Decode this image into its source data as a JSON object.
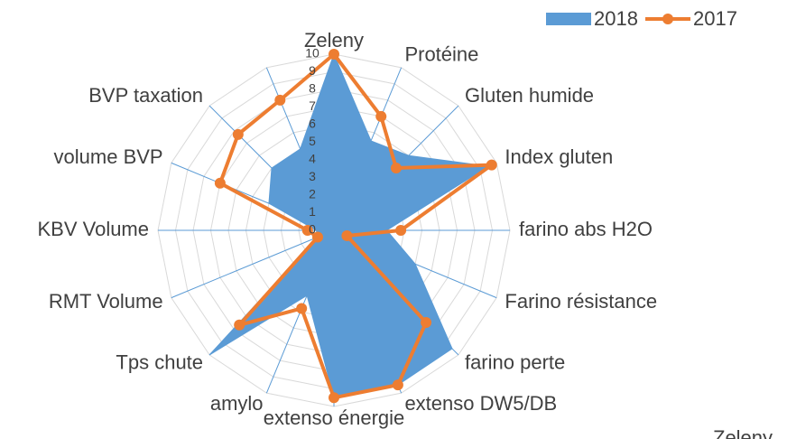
{
  "chart_data": {
    "type": "radar",
    "categories": [
      "Zeleny",
      "Protéine",
      "Gluten humide",
      "Index gluten",
      "farino abs H2O",
      "Farino résistance",
      "farino perte",
      "extenso DW5/DB",
      "extenso énergie",
      "amylo",
      "Tps chute",
      "RMT Volume",
      "KBV Volume",
      "volume BVP",
      "BVP taxation",
      null
    ],
    "series": [
      {
        "name": "2018",
        "color": "#5b9bd5",
        "fill": true,
        "values": [
          10,
          5.5,
          6,
          9.5,
          3,
          5,
          9.5,
          9.5,
          9.5,
          4,
          10,
          1,
          1,
          4,
          5,
          5
        ]
      },
      {
        "name": "2017",
        "color": "#ed7d31",
        "fill": false,
        "values": [
          10,
          7,
          5,
          9.7,
          3.8,
          0.8,
          7.4,
          9.5,
          9.5,
          4.8,
          7.6,
          1,
          1.5,
          7,
          7.7,
          8
        ]
      }
    ],
    "rlim": [
      0,
      10
    ],
    "rticks": [
      0,
      1,
      2,
      3,
      4,
      5,
      6,
      7,
      8,
      9,
      10
    ],
    "grid": true,
    "legend": "top-right",
    "cropped_label": "Zeleny"
  }
}
